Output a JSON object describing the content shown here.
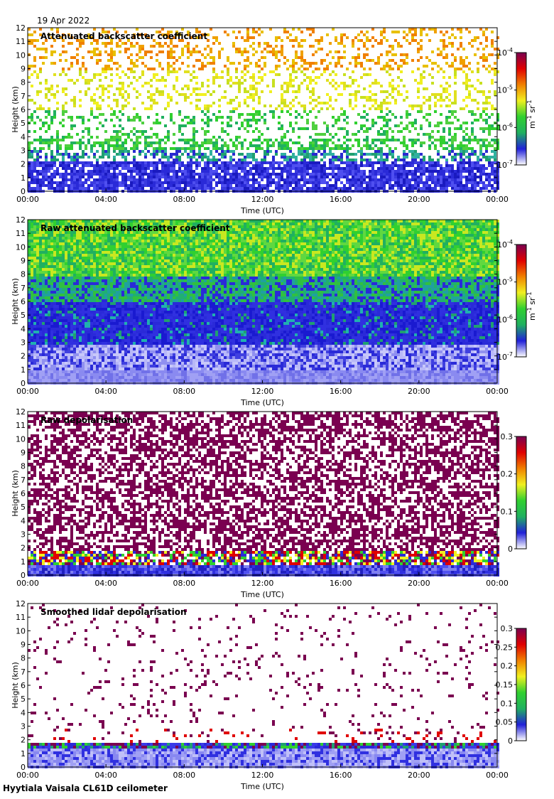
{
  "header": {
    "date": "19 Apr 2022"
  },
  "footer": {
    "instrument": "Hyytiala Vaisala CL61D ceilometer"
  },
  "chart_data": [
    {
      "type": "heatmap",
      "title": "Attenuated backscatter coefficient",
      "xlabel": "Time (UTC)",
      "ylabel": "Height (km)",
      "x_ticks": [
        "00:00",
        "04:00",
        "08:00",
        "12:00",
        "16:00",
        "20:00",
        "00:00"
      ],
      "y_ticks": [
        0,
        1,
        2,
        3,
        4,
        5,
        6,
        7,
        8,
        9,
        10,
        11,
        12
      ],
      "ylim": [
        0,
        12
      ],
      "colorbar": {
        "scale": "log",
        "range": [
          1e-07,
          0.0001
        ],
        "tick_bases": [
          "10",
          "10",
          "10",
          "10"
        ],
        "tick_exponents": [
          "-7",
          "-6",
          "-5",
          "-4"
        ],
        "unit_parts": [
          "m",
          "-1",
          " sr",
          "-1"
        ],
        "colormap": [
          "#ffffff",
          "#2020d8",
          "#20b060",
          "#30d030",
          "#f0f020",
          "#f08000",
          "#e00000",
          "#7a0050"
        ]
      },
      "pattern": "sparse"
    },
    {
      "type": "heatmap",
      "title": "Raw attenuated backscatter coefficient",
      "xlabel": "Time (UTC)",
      "ylabel": "Height (km)",
      "x_ticks": [
        "00:00",
        "04:00",
        "08:00",
        "12:00",
        "16:00",
        "20:00",
        "00:00"
      ],
      "y_ticks": [
        0,
        1,
        2,
        3,
        4,
        5,
        6,
        7,
        8,
        9,
        10,
        11,
        12
      ],
      "ylim": [
        0,
        12
      ],
      "colorbar": {
        "scale": "log",
        "range": [
          1e-07,
          0.0001
        ],
        "tick_bases": [
          "10",
          "10",
          "10",
          "10"
        ],
        "tick_exponents": [
          "-7",
          "-6",
          "-5",
          "-4"
        ],
        "unit_parts": [
          "m",
          "-1",
          " sr",
          "-1"
        ],
        "colormap": [
          "#ffffff",
          "#2020d8",
          "#20b060",
          "#30d030",
          "#f0f020",
          "#f08000",
          "#e00000",
          "#7a0050"
        ]
      },
      "pattern": "dense"
    },
    {
      "type": "heatmap",
      "title": "Raw depolarisation",
      "xlabel": "Time (UTC)",
      "ylabel": "Height (km)",
      "x_ticks": [
        "00:00",
        "04:00",
        "08:00",
        "12:00",
        "16:00",
        "20:00",
        "00:00"
      ],
      "y_ticks": [
        0,
        1,
        2,
        3,
        4,
        5,
        6,
        7,
        8,
        9,
        10,
        11,
        12
      ],
      "ylim": [
        0,
        12
      ],
      "colorbar": {
        "scale": "linear",
        "range": [
          0,
          0.3
        ],
        "ticks": [
          "0",
          "0.1",
          "0.2",
          "0.3"
        ],
        "colormap": [
          "#ffffff",
          "#2020d8",
          "#20b060",
          "#30d030",
          "#f0f020",
          "#f08000",
          "#e00000",
          "#7a0050"
        ]
      },
      "pattern": "purple"
    },
    {
      "type": "heatmap",
      "title": "Smoothed lidar depolarisation",
      "xlabel": "Time (UTC)",
      "ylabel": "Height (km)",
      "x_ticks": [
        "00:00",
        "04:00",
        "08:00",
        "12:00",
        "16:00",
        "20:00",
        "00:00"
      ],
      "y_ticks": [
        0,
        1,
        2,
        3,
        4,
        5,
        6,
        7,
        8,
        9,
        10,
        11,
        12
      ],
      "ylim": [
        0,
        12
      ],
      "colorbar": {
        "scale": "linear",
        "range": [
          0,
          0.3
        ],
        "ticks": [
          "0",
          "0.05",
          "0.1",
          "0.15",
          "0.2",
          "0.25",
          "0.3"
        ],
        "colormap": [
          "#ffffff",
          "#2020d8",
          "#20b060",
          "#30d030",
          "#f0f020",
          "#f08000",
          "#e00000",
          "#7a0050"
        ]
      },
      "pattern": "smooth"
    }
  ]
}
